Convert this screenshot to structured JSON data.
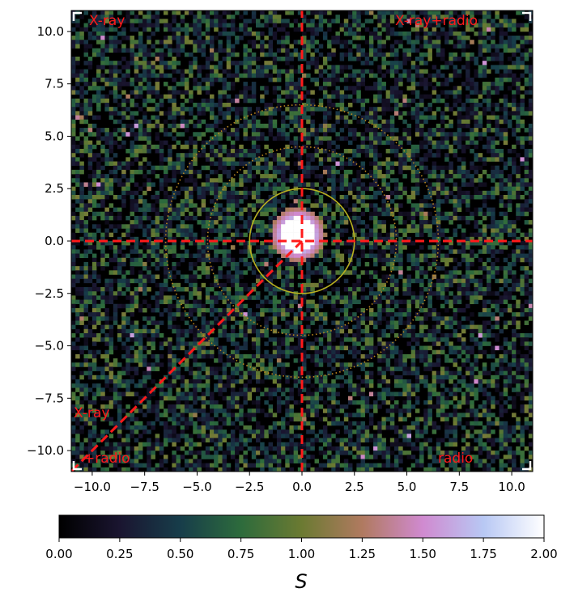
{
  "chart_data": {
    "type": "heatmap",
    "colormap": "cubehelix",
    "xlim": [
      -11,
      11
    ],
    "ylim": [
      -11,
      11
    ],
    "xticks": [
      -10.0,
      -7.5,
      -5.0,
      -2.5,
      0.0,
      2.5,
      5.0,
      7.5,
      10.0
    ],
    "yticks": [
      -10.0,
      -7.5,
      -5.0,
      -2.5,
      0.0,
      2.5,
      5.0,
      7.5,
      10.0
    ],
    "xtick_labels": [
      "−10.0",
      "−7.5",
      "−5.0",
      "−2.5",
      "0.0",
      "2.5",
      "5.0",
      "7.5",
      "10.0"
    ],
    "ytick_labels": [
      "−10.0",
      "−7.5",
      "−5.0",
      "−2.5",
      "0.0",
      "2.5",
      "5.0",
      "7.5",
      "10.0"
    ],
    "grid_bins": 110,
    "colorbar": {
      "label": "S",
      "range": [
        0,
        2
      ],
      "ticks": [
        0.0,
        0.25,
        0.5,
        0.75,
        1.0,
        1.25,
        1.5,
        1.75,
        2.0
      ],
      "tick_labels": [
        "0.00",
        "0.25",
        "0.50",
        "0.75",
        "1.00",
        "1.25",
        "1.50",
        "1.75",
        "2.00"
      ]
    },
    "central_source": {
      "x": -0.2,
      "y": 0.3,
      "value": 2.0
    },
    "circles": [
      {
        "radius": 2.5,
        "color": "#b8b020",
        "style": "solid"
      },
      {
        "radius": 4.5,
        "color": "#c08a20",
        "style": "dotted"
      },
      {
        "radius": 6.5,
        "color": "#c08a20",
        "style": "dotted"
      }
    ],
    "dashed_lines": [
      {
        "x1": -11,
        "y1": 0,
        "x2": 11,
        "y2": 0
      },
      {
        "x1": 0,
        "y1": -11,
        "x2": 0,
        "y2": 11
      },
      {
        "x1": 0,
        "y1": 0,
        "x2": -11,
        "y2": -11
      }
    ],
    "line_color": "#ff1a1a",
    "annotations": {
      "top_left": "X-ray",
      "top_right": "X-ray+radio",
      "left_mid": "X-ray",
      "bottom_left": "+radio",
      "bottom_right": "radio"
    }
  }
}
